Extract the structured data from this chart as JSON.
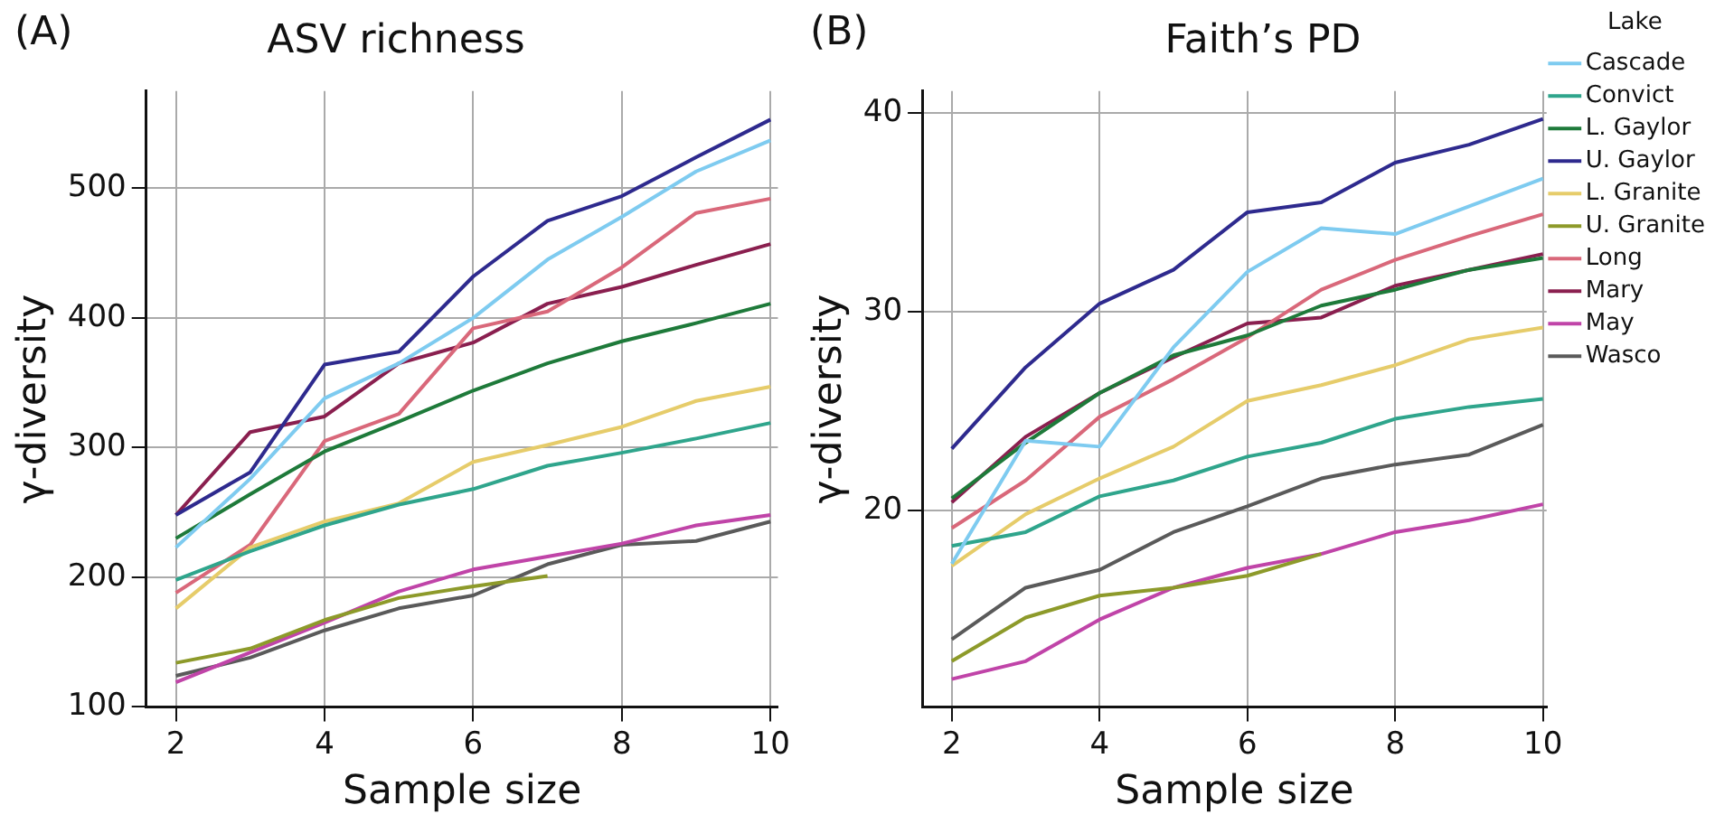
{
  "chart_data": [
    {
      "type": "line",
      "title": "ASV richness",
      "xlabel": "Sample size",
      "ylabel": "γ-diversity",
      "annotations": [
        "(A)"
      ],
      "x": [
        2,
        3,
        4,
        5,
        6,
        7,
        8,
        9,
        10
      ],
      "xlim": [
        1.6,
        10.1
      ],
      "xticks": [
        2,
        4,
        6,
        8,
        10
      ],
      "ylim": [
        100,
        575
      ],
      "yticks": [
        100,
        200,
        300,
        400,
        500
      ],
      "grid": true,
      "legend": false,
      "series": [
        {
          "color": "#7ecbf0",
          "values": [
            223,
            276,
            338,
            365,
            400,
            445,
            478,
            513,
            537
          ]
        },
        {
          "color": "#2fa58c",
          "values": [
            198,
            220,
            240,
            256,
            268,
            286,
            296,
            307,
            319
          ]
        },
        {
          "color": "#1e7a3a",
          "values": [
            230,
            264,
            297,
            320,
            344,
            365,
            382,
            396,
            411
          ]
        },
        {
          "color": "#2e2a8e",
          "values": [
            248,
            281,
            364,
            374,
            432,
            475,
            494,
            524,
            553
          ]
        },
        {
          "color": "#e6cc6a",
          "values": [
            176,
            223,
            243,
            257,
            289,
            302,
            316,
            336,
            347
          ]
        },
        {
          "color": "#8d9a2a",
          "values": [
            134,
            145,
            167,
            184,
            193,
            201,
            null,
            null,
            null
          ]
        },
        {
          "color": "#d9687a",
          "values": [
            188,
            225,
            305,
            326,
            392,
            405,
            439,
            481,
            492
          ]
        },
        {
          "color": "#8a1f4f",
          "values": [
            248,
            312,
            324,
            365,
            381,
            411,
            424,
            441,
            457
          ]
        },
        {
          "color": "#c044a8",
          "values": [
            119,
            142,
            165,
            189,
            206,
            216,
            226,
            240,
            248
          ]
        },
        {
          "color": "#5a5a5a",
          "values": [
            124,
            138,
            159,
            176,
            186,
            210,
            225,
            228,
            243
          ]
        }
      ]
    },
    {
      "type": "line",
      "title": "Faith’s PD",
      "xlabel": "Sample size",
      "ylabel": "γ-diversity",
      "annotations": [
        "(B)"
      ],
      "legend_title": "Lake",
      "x": [
        2,
        3,
        4,
        5,
        6,
        7,
        8,
        9,
        10
      ],
      "xlim": [
        1.6,
        10.05
      ],
      "xticks": [
        2,
        4,
        6,
        8,
        10
      ],
      "ylim": [
        10.1,
        41.1
      ],
      "yticks": [
        20,
        30,
        40
      ],
      "grid": true,
      "legend": "right",
      "series": [
        {
          "name": "Cascade",
          "color": "#7ecbf0",
          "values": [
            17.3,
            23.5,
            23.2,
            28.2,
            32.0,
            34.2,
            33.9,
            35.3,
            36.7
          ]
        },
        {
          "name": "Convict",
          "color": "#2fa58c",
          "values": [
            18.2,
            18.9,
            20.7,
            21.5,
            22.7,
            23.4,
            24.6,
            25.2,
            25.6
          ]
        },
        {
          "name": "L. Gaylor",
          "color": "#1e7a3a",
          "values": [
            20.6,
            23.4,
            25.9,
            27.8,
            28.8,
            30.3,
            31.1,
            32.1,
            32.7
          ]
        },
        {
          "name": "U. Gaylor",
          "color": "#2e2a8e",
          "values": [
            23.1,
            27.2,
            30.4,
            32.1,
            35.0,
            35.5,
            37.5,
            38.4,
            39.7
          ]
        },
        {
          "name": "L. Granite",
          "color": "#e6cc6a",
          "values": [
            17.2,
            19.8,
            21.6,
            23.2,
            25.5,
            26.3,
            27.3,
            28.6,
            29.2
          ]
        },
        {
          "name": "U. Granite",
          "color": "#8d9a2a",
          "values": [
            12.4,
            14.6,
            15.7,
            16.1,
            16.7,
            17.8,
            null,
            null,
            null
          ]
        },
        {
          "name": "Long",
          "color": "#d9687a",
          "values": [
            19.1,
            21.5,
            24.7,
            26.6,
            28.7,
            31.1,
            32.6,
            33.8,
            34.9
          ]
        },
        {
          "name": "Mary",
          "color": "#8a1f4f",
          "values": [
            20.4,
            23.7,
            25.9,
            27.7,
            29.4,
            29.7,
            31.3,
            32.1,
            32.9
          ]
        },
        {
          "name": "May",
          "color": "#c044a8",
          "values": [
            11.5,
            12.4,
            14.5,
            16.1,
            17.1,
            17.8,
            18.9,
            19.5,
            20.3
          ]
        },
        {
          "name": "Wasco",
          "color": "#5a5a5a",
          "values": [
            13.5,
            16.1,
            17.0,
            18.9,
            20.2,
            21.6,
            22.3,
            22.8,
            24.3
          ]
        }
      ]
    }
  ]
}
